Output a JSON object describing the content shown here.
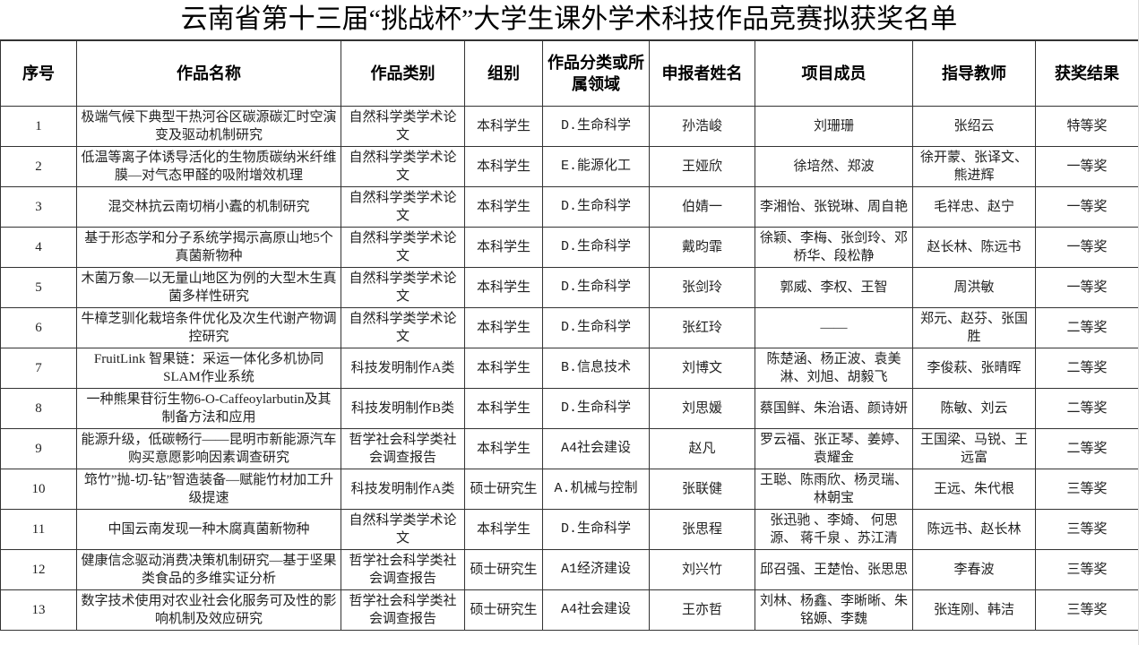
{
  "title": "云南省第十三届“挑战杯”大学生课外学术科技作品竞赛拟获奖名单",
  "headers": [
    "序号",
    "作品名称",
    "作品类别",
    "组别",
    "作品分类或所属领域",
    "申报者姓名",
    "项目成员",
    "指导教师",
    "获奖结果"
  ],
  "rows": [
    [
      "1",
      "极端气候下典型干热河谷区碳源碳汇时空演变及驱动机制研究",
      "自然科学类学术论文",
      "本科学生",
      "D.生命科学",
      "孙浩峻",
      "刘珊珊",
      "张绍云",
      "特等奖"
    ],
    [
      "2",
      "低温等离子体诱导活化的生物质碳纳米纤维膜—对气态甲醛的吸附增效机理",
      "自然科学类学术论文",
      "本科学生",
      "E.能源化工",
      "王娅欣",
      "徐培然、郑波",
      "徐开蒙、张译文、熊进辉",
      "一等奖"
    ],
    [
      "3",
      "混交林抗云南切梢小蠹的机制研究",
      "自然科学类学术论文",
      "本科学生",
      "D.生命科学",
      "伯婧一",
      "李湘怡、张锐琳、周自艳",
      "毛祥忠、赵宁",
      "一等奖"
    ],
    [
      "4",
      "基于形态学和分子系统学揭示高原山地5个真菌新物种",
      "自然科学类学术论文",
      "本科学生",
      "D.生命科学",
      "戴昀霏",
      "徐颖、李梅、张剑玲、邓桥华、段松静",
      "赵长林、陈远书",
      "一等奖"
    ],
    [
      "5",
      "木菌万象—以无量山地区为例的大型木生真菌多样性研究",
      "自然科学类学术论文",
      "本科学生",
      "D.生命科学",
      "张剑玲",
      "郭威、李权、王智",
      "周洪敏",
      "一等奖"
    ],
    [
      "6",
      "牛樟芝驯化栽培条件优化及次生代谢产物调控研究",
      "自然科学类学术论文",
      "本科学生",
      "D.生命科学",
      "张红玲",
      "——",
      "郑元、赵芬、张国胜",
      "二等奖"
    ],
    [
      "7",
      "FruitLink 智果链：采运一体化多机协同SLAM作业系统",
      "科技发明制作A类",
      "本科学生",
      "B.信息技术",
      "刘博文",
      "陈楚涵、杨正波、袁美淋、刘旭、胡毅飞",
      "李俊萩、张晴晖",
      "二等奖"
    ],
    [
      "8",
      "一种熊果苷衍生物6-O-Caffeoylarbutin及其制备方法和应用",
      "科技发明制作B类",
      "本科学生",
      "D.生命科学",
      "刘思媛",
      "蔡国鲜、朱治语、颜诗妍",
      "陈敏、刘云",
      "二等奖"
    ],
    [
      "9",
      "能源升级，低碳畅行——昆明市新能源汽车购买意愿影响因素调查研究",
      "哲学社会科学类社会调查报告",
      "本科学生",
      "A4社会建设",
      "赵凡",
      "罗云福、张正琴、姜婷、袁耀金",
      "王国梁、马锐、王远富",
      "二等奖"
    ],
    [
      "10",
      "筇竹”抛-切-钻”智造装备—赋能竹材加工升级提速",
      "科技发明制作A类",
      "硕士研究生",
      "A.机械与控制",
      "张联健",
      "王聪、陈雨欣、杨灵瑞、林朝宝",
      "王远、朱代根",
      "三等奖"
    ],
    [
      "11",
      "中国云南发现一种木腐真菌新物种",
      "自然科学类学术论文",
      "本科学生",
      "D.生命科学",
      "张思程",
      "张迅驰 、李婍、 何思源、 蒋千泉 、苏江清",
      "陈远书、赵长林",
      "三等奖"
    ],
    [
      "12",
      "健康信念驱动消费决策机制研究—基于坚果类食品的多维实证分析",
      "哲学社会科学类社会调查报告",
      "硕士研究生",
      "A1经济建设",
      "刘兴竹",
      "邱召强、王楚怡、张思思",
      "李春波",
      "三等奖"
    ],
    [
      "13",
      "数字技术使用对农业社会化服务可及性的影响机制及效应研究",
      "哲学社会科学类社会调查报告",
      "硕士研究生",
      "A4社会建设",
      "王亦哲",
      "刘林、杨鑫、李晰晰、朱铭嫄、李魏",
      "张连刚、韩洁",
      "三等奖"
    ]
  ]
}
